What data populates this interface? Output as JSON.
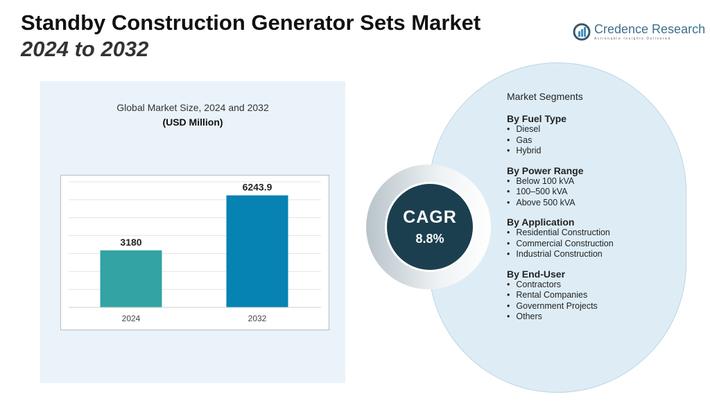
{
  "title": "Standby Construction Generator Sets Market",
  "subtitle": "2024 to 2032",
  "logo": {
    "name": "Credence Research",
    "tagline": "Actionable Insights Delivered"
  },
  "chart_data": {
    "type": "bar",
    "title": "Global Market Size, 2024 and 2032",
    "unit": "(USD Million)",
    "categories": [
      "2024",
      "2032"
    ],
    "values": [
      3180,
      6243.9
    ],
    "labels": [
      "3180",
      "6243.9"
    ],
    "colors": [
      "#33a3a3",
      "#0682b3"
    ],
    "ylim": [
      0,
      7000
    ],
    "grid": true
  },
  "cagr": {
    "label": "CAGR",
    "value": "8.8%"
  },
  "segments": {
    "heading": "Market Segments",
    "groups": [
      {
        "title": "By Fuel Type",
        "items": [
          "Diesel",
          "Gas",
          "Hybrid"
        ]
      },
      {
        "title": "By Power Range",
        "items": [
          "Below 100 kVA",
          "100–500 kVA",
          "Above 500 kVA"
        ]
      },
      {
        "title": "By Application",
        "items": [
          "Residential Construction",
          "Commercial Construction",
          "Industrial Construction"
        ]
      },
      {
        "title": "By End-User",
        "items": [
          "Contractors",
          "Rental Companies",
          "Government Projects",
          "Others"
        ]
      }
    ]
  }
}
